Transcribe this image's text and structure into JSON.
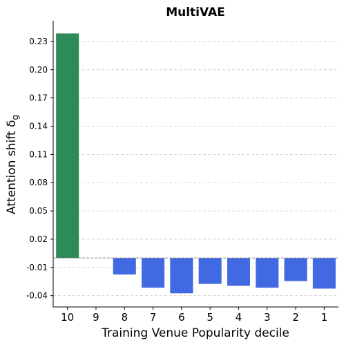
{
  "chart_data": {
    "type": "bar",
    "title": "MultiVAE",
    "xlabel": "Training Venue Popularity decile",
    "ylabel": "Attention shift δ",
    "ylabel_subscript": "g",
    "categories": [
      "10",
      "9",
      "8",
      "7",
      "6",
      "5",
      "4",
      "3",
      "2",
      "1"
    ],
    "values": [
      0.2385,
      0.0,
      -0.0175,
      -0.0315,
      -0.0375,
      -0.0275,
      -0.0295,
      -0.0315,
      -0.0245,
      -0.0325
    ],
    "bar_colors": [
      "#2e8b57",
      "#4169e1",
      "#4169e1",
      "#4169e1",
      "#4169e1",
      "#4169e1",
      "#4169e1",
      "#4169e1",
      "#4169e1",
      "#4169e1"
    ],
    "yticks": [
      "-0.04",
      "-0.01",
      "0.02",
      "0.05",
      "0.08",
      "0.11",
      "0.14",
      "0.17",
      "0.20",
      "0.23"
    ],
    "ylim": [
      -0.052,
      0.252
    ],
    "grid": true
  }
}
